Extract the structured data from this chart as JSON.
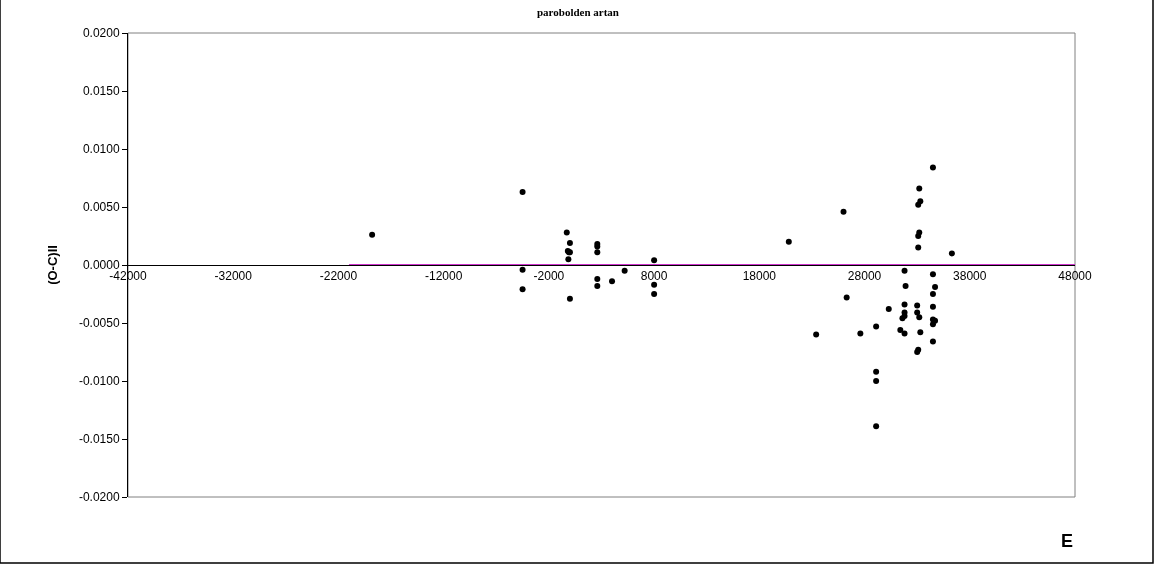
{
  "chart_data": {
    "type": "scatter",
    "title": "parobolden artan",
    "xlabel": "E",
    "ylabel": "(O-C)II",
    "xlim": [
      -42000,
      48000
    ],
    "xticks": [
      -42000,
      -32000,
      -22000,
      -12000,
      -2000,
      8000,
      18000,
      28000,
      38000,
      48000
    ],
    "ylim": [
      -0.02,
      0.02
    ],
    "yticks": [
      {
        "value": -0.02,
        "label": "-0.0200"
      },
      {
        "value": -0.015,
        "label": "-0.0150"
      },
      {
        "value": -0.01,
        "label": "-0.0100"
      },
      {
        "value": -0.005,
        "label": "-0.0050"
      },
      {
        "value": 0,
        "label": "0.0000"
      },
      {
        "value": 0.005,
        "label": "0.0050"
      },
      {
        "value": 0.01,
        "label": "0.0100"
      },
      {
        "value": 0.015,
        "label": "0.0150"
      },
      {
        "value": 0.02,
        "label": "0.0200"
      }
    ],
    "grid": false,
    "marker": "circle",
    "series": [
      {
        "color": "#000000",
        "x": [
          -18800,
          -4500,
          -4500,
          -4500,
          -300,
          0,
          -200,
          -100,
          0,
          -150,
          0,
          2600,
          2600,
          2600,
          2600,
          2600,
          4000,
          5200,
          8000,
          8000,
          8000,
          34500,
          33200,
          33300,
          33100,
          26000,
          20800,
          33200,
          33100,
          33100,
          36300,
          31800,
          34500,
          31900,
          34700,
          26300,
          34500,
          34500,
          30300,
          31800,
          33000,
          33000,
          33200,
          31800,
          31800,
          31600,
          34500,
          34700,
          34500,
          31400,
          31800,
          33300,
          29100,
          27600,
          23400,
          34500,
          33100,
          33000,
          29100,
          29100,
          29100
        ],
        "values": [
          0.0026,
          0.0063,
          -0.0004,
          -0.0021,
          0.0028,
          0.0019,
          0.0012,
          0.0011,
          0.0011,
          0.0005,
          -0.0029,
          0.0018,
          0.0016,
          0.0011,
          -0.0012,
          -0.0018,
          -0.0014,
          -0.0005,
          0.0004,
          -0.0017,
          -0.0025,
          0.0084,
          0.0066,
          0.0055,
          0.0052,
          0.0046,
          0.002,
          0.0028,
          0.0025,
          0.0015,
          0.001,
          -0.0005,
          -0.0008,
          -0.0018,
          -0.0019,
          -0.0028,
          -0.0025,
          -0.0036,
          -0.0038,
          -0.0034,
          -0.0035,
          -0.0041,
          -0.0045,
          -0.0041,
          -0.0044,
          -0.0046,
          -0.0047,
          -0.0048,
          -0.0051,
          -0.0056,
          -0.0059,
          -0.0058,
          -0.0053,
          -0.0059,
          -0.006,
          -0.0066,
          -0.0073,
          -0.0075,
          -0.0092,
          -0.01,
          -0.0139
        ]
      },
      {
        "type": "line",
        "color": "#cc33cc",
        "marker": "none",
        "line_style": "solid",
        "x": [
          -21000,
          48000
        ],
        "values": [
          0,
          0
        ]
      }
    ]
  }
}
